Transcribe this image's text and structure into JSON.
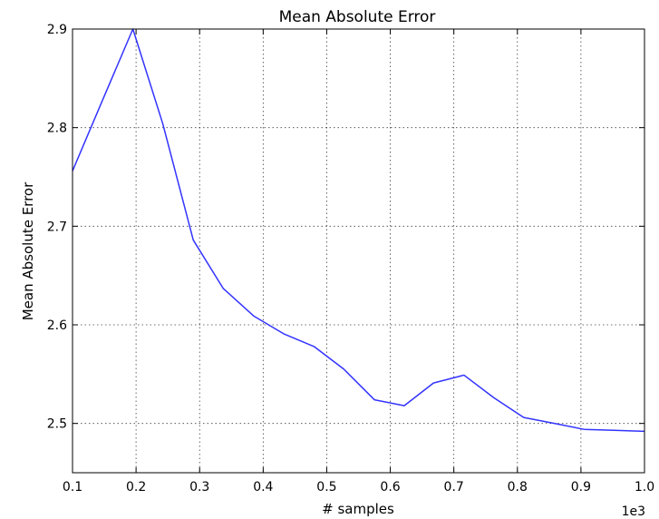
{
  "chart_data": {
    "type": "line",
    "title": "Mean Absolute Error",
    "xlabel": "# samples",
    "ylabel": "Mean Absolute Error",
    "x_offset_text": "1e3",
    "xlim": [
      0.1,
      1.0
    ],
    "ylim": [
      2.45,
      2.9
    ],
    "x_ticks": [
      "0.1",
      "0.2",
      "0.3",
      "0.4",
      "0.5",
      "0.6",
      "0.7",
      "0.8",
      "0.9",
      "1.0"
    ],
    "y_ticks": [
      "2.5",
      "2.6",
      "2.7",
      "2.8",
      "2.9"
    ],
    "grid": true,
    "series": [
      {
        "color": "#3333ff",
        "x": [
          0.1,
          0.146,
          0.195,
          0.242,
          0.29,
          0.337,
          0.385,
          0.432,
          0.48,
          0.527,
          0.575,
          0.622,
          0.668,
          0.716,
          0.763,
          0.81,
          0.858,
          0.905,
          0.952,
          1.0
        ],
        "y": [
          2.756,
          2.826,
          2.9,
          2.804,
          2.686,
          2.637,
          2.609,
          2.591,
          2.578,
          2.555,
          2.524,
          2.518,
          2.541,
          2.549,
          2.526,
          2.506,
          2.5,
          2.494,
          2.493,
          2.492
        ]
      }
    ]
  }
}
